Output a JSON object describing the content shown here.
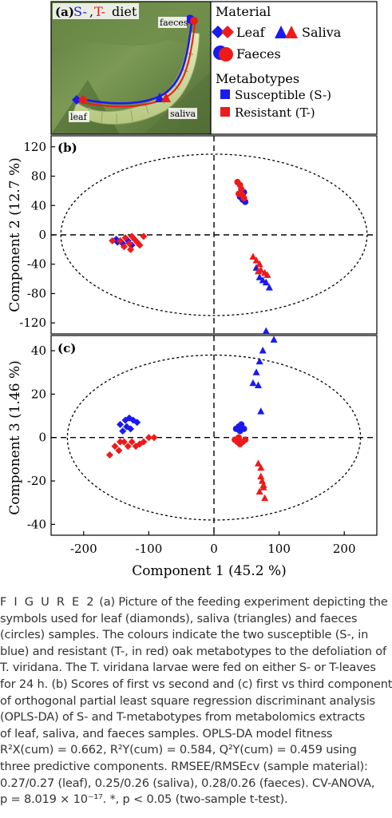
{
  "panel_a": {
    "label": "(a)",
    "title_prefix": "S-",
    "title_comma": ",",
    "title_mid": "T-",
    "title_suffix": "diet",
    "site_faeces": "faeces",
    "site_leaf": "leaf",
    "site_saliva": "saliva"
  },
  "legend": {
    "material_heading": "Material",
    "leaf": "Leaf",
    "saliva": "Saliva",
    "faeces": "Faeces",
    "metabotypes_heading": "Metabotypes",
    "susceptible": "Susceptible (S-)",
    "resistant": "Resistant (T-)",
    "colors": {
      "susceptible": "#1a1aee",
      "resistant": "#ee1a1a"
    }
  },
  "chart_data": [
    {
      "type": "scatter",
      "panel_label": "(b)",
      "xlabel": "",
      "ylabel": "Component 2 (12.7 %)",
      "xlim": [
        -250,
        250
      ],
      "ylim": [
        -135,
        135
      ],
      "y_ticks": [
        "120",
        "80",
        "40",
        "0",
        "-40",
        "-80",
        "-120"
      ],
      "confidence_ellipse": {
        "center": [
          0,
          0
        ],
        "semi_axes": [
          235,
          110
        ]
      },
      "series": [
        {
          "name": "Leaf (S-)",
          "marker": "diamond",
          "color": "#1a1aee",
          "points": [
            [
              -148,
              -10
            ],
            [
              -140,
              -12
            ],
            [
              -132,
              -8
            ],
            [
              -126,
              -14
            ],
            [
              -150,
              -6
            ]
          ]
        },
        {
          "name": "Leaf (T-)",
          "marker": "diamond",
          "color": "#ee1a1a",
          "points": [
            [
              -156,
              -8
            ],
            [
              -144,
              -8
            ],
            [
              -136,
              -4
            ],
            [
              -128,
              -20
            ],
            [
              -122,
              -6
            ],
            [
              -118,
              -10
            ],
            [
              -130,
              -12
            ],
            [
              -138,
              -16
            ],
            [
              -114,
              -14
            ],
            [
              -108,
              -2
            ],
            [
              -126,
              -2
            ]
          ]
        },
        {
          "name": "Saliva (S-)",
          "marker": "triangle",
          "color": "#1a1aee",
          "points": [
            [
              65,
              -45
            ],
            [
              70,
              -58
            ],
            [
              75,
              -62
            ],
            [
              80,
              -65
            ],
            [
              85,
              -72
            ]
          ]
        },
        {
          "name": "Saliva (T-)",
          "marker": "triangle",
          "color": "#ee1a1a",
          "points": [
            [
              60,
              -30
            ],
            [
              65,
              -35
            ],
            [
              70,
              -40
            ],
            [
              72,
              -48
            ],
            [
              78,
              -52
            ],
            [
              82,
              -55
            ],
            [
              68,
              -50
            ]
          ]
        },
        {
          "name": "Faeces (S-)",
          "marker": "circle",
          "color": "#1a1aee",
          "points": [
            [
              40,
              52
            ],
            [
              44,
              48
            ],
            [
              46,
              58
            ],
            [
              42,
              62
            ],
            [
              48,
              45
            ]
          ]
        },
        {
          "name": "Faeces (T-)",
          "marker": "circle",
          "color": "#ee1a1a",
          "points": [
            [
              36,
              72
            ],
            [
              40,
              68
            ],
            [
              42,
              62
            ],
            [
              38,
              56
            ],
            [
              44,
              54
            ],
            [
              46,
              50
            ]
          ]
        }
      ]
    },
    {
      "type": "scatter",
      "panel_label": "(c)",
      "xlabel": "Component 1 (45.2 %)",
      "ylabel": "Component 3 (1.46 %)",
      "xlim": [
        -250,
        250
      ],
      "ylim": [
        -45,
        47
      ],
      "x_ticks": [
        "-200",
        "-100",
        "0",
        "100",
        "200"
      ],
      "y_ticks": [
        "40",
        "20",
        "0",
        "-20",
        "-40"
      ],
      "confidence_ellipse": {
        "center": [
          0,
          0
        ],
        "semi_axes": [
          225,
          38
        ]
      },
      "series": [
        {
          "name": "Leaf (S-)",
          "marker": "diamond",
          "color": "#1a1aee",
          "points": [
            [
              -144,
              6
            ],
            [
              -136,
              8
            ],
            [
              -130,
              9
            ],
            [
              -124,
              8
            ],
            [
              -118,
              7
            ],
            [
              -128,
              4
            ],
            [
              -140,
              3
            ],
            [
              -134,
              5
            ]
          ]
        },
        {
          "name": "Leaf (T-)",
          "marker": "diamond",
          "color": "#ee1a1a",
          "points": [
            [
              -160,
              -8
            ],
            [
              -152,
              -4
            ],
            [
              -146,
              -6
            ],
            [
              -138,
              -2
            ],
            [
              -132,
              -4
            ],
            [
              -126,
              -2
            ],
            [
              -120,
              -4
            ],
            [
              -114,
              -3
            ],
            [
              -108,
              -2
            ],
            [
              -100,
              0
            ],
            [
              -92,
              0
            ],
            [
              -144,
              -2
            ]
          ]
        },
        {
          "name": "Saliva (S-)",
          "marker": "triangle",
          "color": "#1a1aee",
          "points": [
            [
              60,
              25
            ],
            [
              65,
              30
            ],
            [
              70,
              35
            ],
            [
              75,
              40
            ],
            [
              80,
              49
            ],
            [
              92,
              45
            ],
            [
              68,
              24
            ],
            [
              72,
              12
            ]
          ]
        },
        {
          "name": "Saliva (T-)",
          "marker": "triangle",
          "color": "#ee1a1a",
          "points": [
            [
              68,
              -12
            ],
            [
              72,
              -18
            ],
            [
              74,
              -20
            ],
            [
              76,
              -23
            ],
            [
              70,
              -25
            ],
            [
              78,
              -28
            ],
            [
              72,
              -14
            ],
            [
              76,
              -22
            ]
          ]
        },
        {
          "name": "Faeces (S-)",
          "marker": "circle",
          "color": "#1a1aee",
          "points": [
            [
              34,
              4
            ],
            [
              38,
              5
            ],
            [
              42,
              6
            ],
            [
              46,
              4
            ],
            [
              40,
              3
            ]
          ]
        },
        {
          "name": "Faeces (T-)",
          "marker": "circle",
          "color": "#ee1a1a",
          "points": [
            [
              32,
              -1
            ],
            [
              36,
              -2
            ],
            [
              40,
              -3
            ],
            [
              44,
              -2
            ],
            [
              48,
              -1
            ],
            [
              38,
              0
            ]
          ]
        }
      ]
    }
  ],
  "caption": {
    "lines": [
      {
        "label": "F I G U R E  2",
        "text": "   (a) Picture of the feeding experiment depicting the"
      },
      {
        "text": "symbols used for leaf (diamonds), saliva (triangles) and faeces"
      },
      {
        "text": "(circles) samples. The colours indicate the two susceptible (S-, in"
      },
      {
        "text": "blue) and resistant (T-, in red) oak metabotypes to the defoliation of"
      },
      {
        "text": "T. viridana. The T. viridana larvae were fed on either S- or T-leaves"
      },
      {
        "text": "for 24 h. (b) Scores of first vs second and (c) first vs third component"
      },
      {
        "text": "of orthogonal partial least square regression discriminant analysis"
      },
      {
        "text": "(OPLS-DA) of S- and T-metabotypes from metabolomics extracts"
      },
      {
        "text": "of leaf, saliva, and faeces samples. OPLS-DA model fitness"
      },
      {
        "text": "R²X(cum) = 0.662, R²Y(cum) = 0.584, Q²Y(cum) = 0.459 using"
      },
      {
        "text": "three predictive components. RMSEE/RMSEcv (sample material):"
      },
      {
        "text": "0.27/0.27 (leaf), 0.25/0.26 (saliva), 0.28/0.26 (faeces). CV-ANOVA,"
      },
      {
        "text": "p = 8.019 × 10⁻¹⁷. *, p < 0.05 (two-sample t-test)."
      }
    ]
  }
}
